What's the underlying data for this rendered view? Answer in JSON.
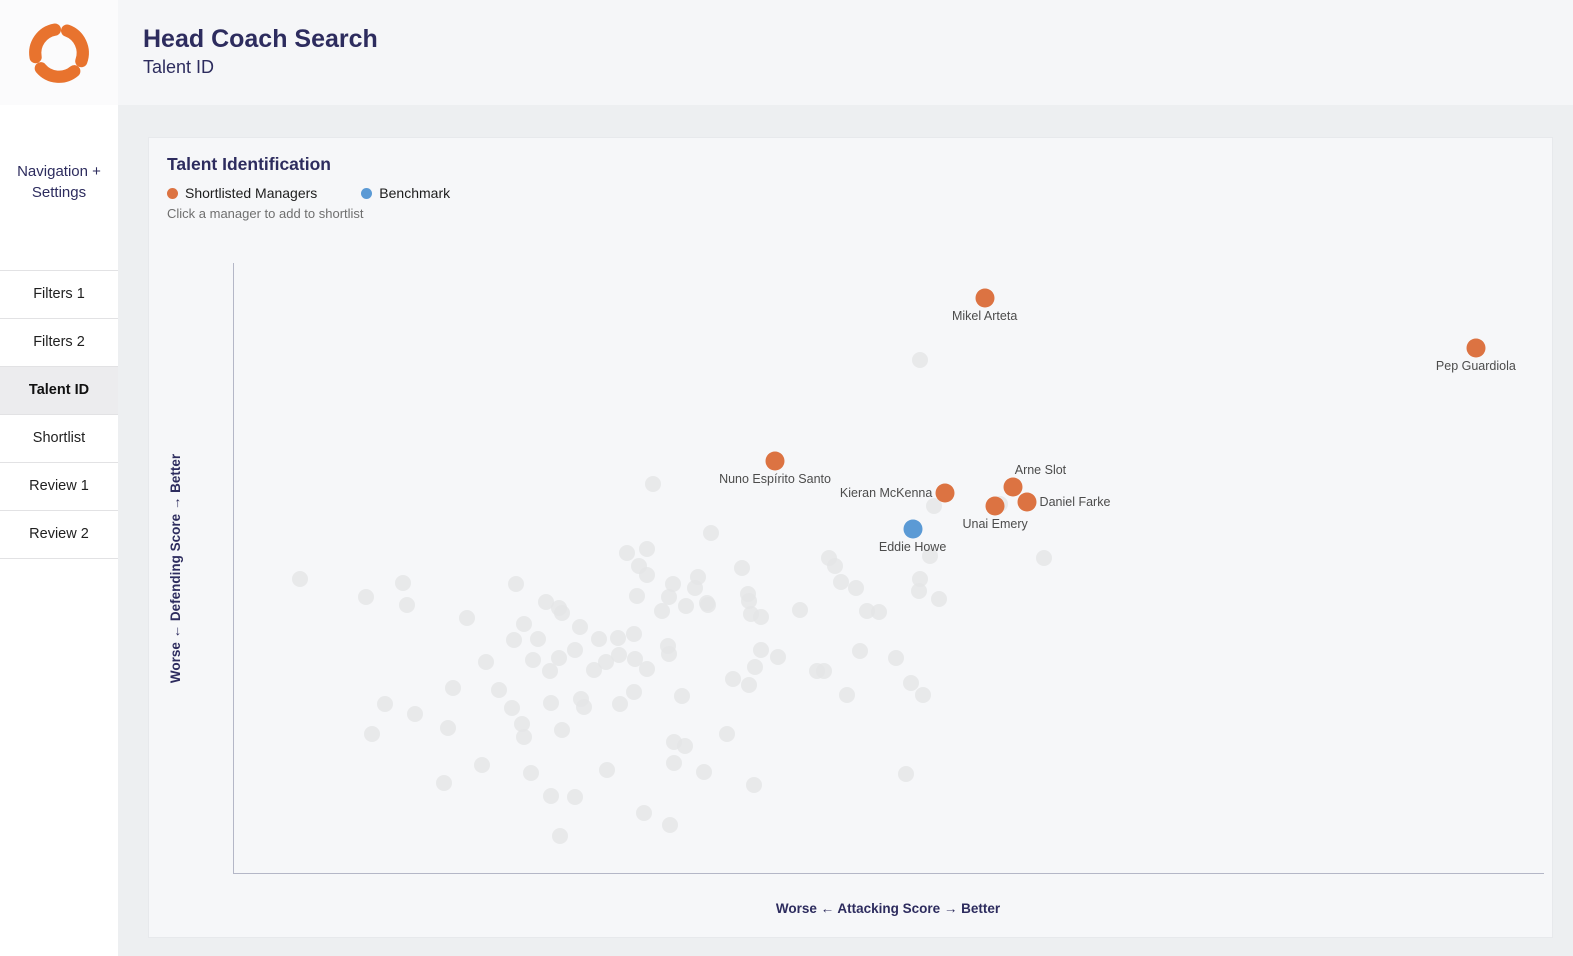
{
  "header": {
    "title": "Head Coach Search",
    "subtitle": "Talent ID"
  },
  "sidebar": {
    "section_label": "Navigation + Settings",
    "items": [
      {
        "label": "Filters 1",
        "active": false
      },
      {
        "label": "Filters 2",
        "active": false
      },
      {
        "label": "Talent ID",
        "active": true
      },
      {
        "label": "Shortlist",
        "active": false
      },
      {
        "label": "Review 1",
        "active": false
      },
      {
        "label": "Review 2",
        "active": false
      }
    ]
  },
  "chart": {
    "title": "Talent Identification",
    "legend": [
      {
        "label": "Shortlisted Managers",
        "color": "#DC7342"
      },
      {
        "label": "Benchmark",
        "color": "#5B9AD5"
      }
    ],
    "caption": "Click a manager to add to shortlist",
    "x_axis_label": "Worse ← Attacking Score → Better",
    "y_axis_label": "Worse ← Defending Score → Better"
  },
  "colors": {
    "shortlisted_orange": "#DC7342",
    "benchmark_blue": "#5B9AD5",
    "unselected_gray": "#E4E5E7",
    "navy_text": "#2D2C5E",
    "logo_orange": "#E8732E"
  },
  "chart_data": {
    "type": "scatter",
    "title": "Talent Identification",
    "xlabel": "Worse ← Attacking Score → Better",
    "ylabel": "Worse ← Defending Score → Better",
    "axis_note": "No numeric ticks shown; x and y are percent of axis length (0 = worse, 100 = better).",
    "xlim": [
      0,
      100
    ],
    "ylim": [
      0,
      100
    ],
    "grid": false,
    "legend_position": "top-left",
    "series": [
      {
        "name": "Shortlisted Managers",
        "color": "#DC7342",
        "css": "dot-named",
        "dot_name": "shortlisted-manager-dot",
        "points": [
          {
            "label": "Mikel Arteta",
            "x": 57.3,
            "y": 94.3,
            "label_pos": "below"
          },
          {
            "label": "Pep Guardiola",
            "x": 94.8,
            "y": 86.1,
            "label_pos": "below"
          },
          {
            "label": "Nuno Espírito Santo",
            "x": 41.3,
            "y": 67.5,
            "label_pos": "below"
          },
          {
            "label": "Kieran McKenna",
            "x": 54.3,
            "y": 62.3,
            "label_pos": "left"
          },
          {
            "label": "Arne Slot",
            "x": 59.5,
            "y": 63.3,
            "label_pos": "above-right"
          },
          {
            "label": "Daniel Farke",
            "x": 60.5,
            "y": 60.8,
            "label_pos": "right"
          },
          {
            "label": "Unai Emery",
            "x": 58.1,
            "y": 60.2,
            "label_pos": "below"
          }
        ]
      },
      {
        "name": "Benchmark",
        "color": "#5B9AD5",
        "css": "dot-named",
        "dot_name": "benchmark-dot",
        "points": [
          {
            "label": "Eddie Howe",
            "x": 51.8,
            "y": 56.4,
            "label_pos": "below"
          }
        ]
      },
      {
        "name": "Other Managers (unlabeled)",
        "color": "#E4E5E7",
        "css": "dot-bg",
        "dot_name": "manager-dot",
        "points": [
          [
            52.4,
            84.1
          ],
          [
            32.0,
            63.8
          ],
          [
            36.4,
            55.7
          ],
          [
            53.4,
            60.2
          ],
          [
            58.5,
            60.5
          ],
          [
            45.4,
            51.6
          ],
          [
            45.9,
            50.3
          ],
          [
            61.8,
            51.6
          ],
          [
            5.0,
            48.2
          ],
          [
            10.1,
            45.2
          ],
          [
            12.9,
            47.5
          ],
          [
            13.2,
            43.9
          ],
          [
            17.8,
            41.8
          ],
          [
            21.5,
            47.4
          ],
          [
            23.8,
            44.4
          ],
          [
            24.8,
            43.4
          ],
          [
            25.0,
            42.6
          ],
          [
            22.1,
            40.8
          ],
          [
            21.4,
            38.2
          ],
          [
            23.2,
            38.4
          ],
          [
            26.4,
            40.3
          ],
          [
            30.8,
            45.4
          ],
          [
            32.7,
            43.0
          ],
          [
            27.9,
            38.4
          ],
          [
            29.3,
            38.5
          ],
          [
            30.5,
            39.2
          ],
          [
            33.1,
            37.2
          ],
          [
            19.2,
            34.6
          ],
          [
            22.8,
            34.9
          ],
          [
            24.8,
            35.2
          ],
          [
            27.5,
            33.3
          ],
          [
            28.4,
            34.6
          ],
          [
            29.4,
            35.7
          ],
          [
            30.6,
            35.1
          ],
          [
            24.1,
            33.1
          ],
          [
            16.7,
            30.3
          ],
          [
            20.2,
            30.0
          ],
          [
            30.5,
            29.7
          ],
          [
            26.5,
            28.5
          ],
          [
            26.7,
            27.2
          ],
          [
            29.5,
            27.7
          ],
          [
            11.5,
            27.7
          ],
          [
            13.8,
            26.1
          ],
          [
            16.3,
            23.8
          ],
          [
            21.2,
            27.0
          ],
          [
            22.0,
            24.4
          ],
          [
            22.1,
            22.3
          ],
          [
            25.0,
            23.4
          ],
          [
            24.2,
            27.9
          ],
          [
            10.5,
            22.8
          ],
          [
            34.2,
            29.0
          ],
          [
            18.9,
            17.7
          ],
          [
            16.0,
            14.8
          ],
          [
            22.7,
            16.4
          ],
          [
            24.2,
            12.6
          ],
          [
            26.0,
            12.5
          ],
          [
            24.9,
            6.1
          ],
          [
            28.5,
            16.9
          ],
          [
            33.6,
            21.5
          ],
          [
            34.4,
            20.8
          ],
          [
            33.6,
            18.0
          ],
          [
            35.9,
            16.6
          ],
          [
            31.3,
            9.8
          ],
          [
            33.3,
            7.9
          ],
          [
            38.8,
            50.0
          ],
          [
            39.2,
            45.7
          ],
          [
            39.5,
            42.5
          ],
          [
            40.2,
            42.0
          ],
          [
            36.1,
            44.3
          ],
          [
            43.2,
            43.1
          ],
          [
            46.3,
            47.7
          ],
          [
            47.5,
            46.7
          ],
          [
            48.3,
            43.0
          ],
          [
            49.2,
            42.8
          ],
          [
            52.4,
            48.2
          ],
          [
            52.3,
            46.2
          ],
          [
            53.8,
            44.9
          ],
          [
            53.1,
            52.0
          ],
          [
            40.2,
            36.6
          ],
          [
            41.5,
            35.4
          ],
          [
            39.8,
            33.8
          ],
          [
            38.1,
            31.8
          ],
          [
            39.3,
            30.8
          ],
          [
            44.5,
            33.1
          ],
          [
            45.0,
            33.1
          ],
          [
            47.8,
            36.4
          ],
          [
            50.5,
            35.2
          ],
          [
            51.7,
            31.1
          ],
          [
            52.6,
            29.2
          ],
          [
            46.8,
            29.2
          ],
          [
            37.6,
            22.8
          ],
          [
            39.7,
            14.4
          ],
          [
            51.3,
            16.2
          ],
          [
            30.0,
            52.5
          ],
          [
            31.5,
            53.1
          ],
          [
            30.9,
            50.3
          ],
          [
            31.5,
            48.9
          ],
          [
            33.5,
            47.4
          ],
          [
            35.4,
            48.5
          ],
          [
            33.2,
            45.2
          ],
          [
            34.5,
            43.8
          ],
          [
            35.2,
            46.7
          ],
          [
            36.2,
            43.9
          ],
          [
            39.3,
            44.6
          ],
          [
            26.0,
            36.6
          ],
          [
            31.5,
            33.4
          ],
          [
            33.2,
            35.9
          ]
        ]
      }
    ]
  }
}
